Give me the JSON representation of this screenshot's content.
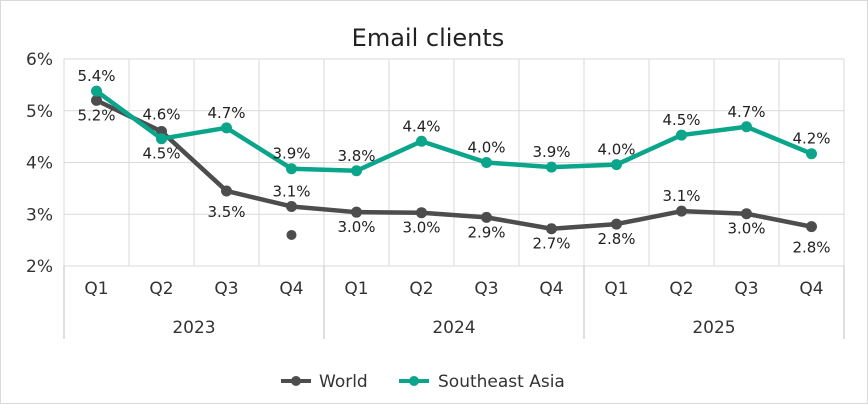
{
  "chart_data": {
    "type": "line",
    "title": "Email clients",
    "y_unit": "%",
    "ylim": [
      2,
      6
    ],
    "yticks": [
      "2%",
      "3%",
      "4%",
      "5%",
      "6%"
    ],
    "grid": true,
    "legend_position": "bottom",
    "categories": [
      "Q1",
      "Q2",
      "Q3",
      "Q4",
      "Q1",
      "Q2",
      "Q3",
      "Q4",
      "Q1",
      "Q2",
      "Q3",
      "Q4"
    ],
    "groups": [
      {
        "label": "2023",
        "count": 4
      },
      {
        "label": "2024",
        "count": 4
      },
      {
        "label": "2025",
        "count": 4
      }
    ],
    "series": [
      {
        "name": "World",
        "color": "#4d4d4d",
        "values": [
          5.2,
          4.6,
          3.45,
          3.15,
          3.04,
          3.03,
          2.94,
          2.72,
          2.81,
          3.06,
          3.01,
          2.76
        ],
        "labels": [
          "5.2%",
          "4.6%",
          "3.5%",
          "3.1%",
          "3.0%",
          "3.0%",
          "2.9%",
          "2.7%",
          "2.8%",
          "3.1%",
          "3.0%",
          "2.8%"
        ],
        "extra_point": {
          "index": 3,
          "value": 2.6
        }
      },
      {
        "name": "Southeast Asia",
        "color": "#0aa58a",
        "values": [
          5.38,
          4.46,
          4.67,
          3.88,
          3.84,
          4.41,
          4.0,
          3.91,
          3.96,
          4.53,
          4.69,
          4.17
        ],
        "labels": [
          "5.4%",
          "4.5%",
          "4.7%",
          "3.9%",
          "3.8%",
          "4.4%",
          "4.0%",
          "3.9%",
          "4.0%",
          "4.5%",
          "4.7%",
          "4.2%"
        ]
      }
    ]
  }
}
